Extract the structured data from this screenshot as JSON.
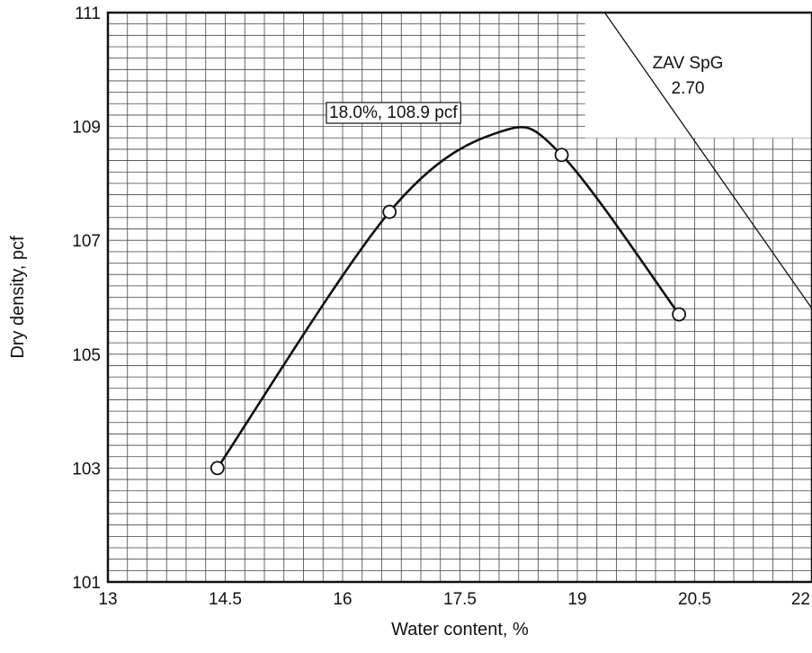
{
  "chart_data": {
    "type": "line",
    "title": "",
    "xlabel": "Water content, %",
    "ylabel": "Dry density, pcf",
    "xlim": [
      13,
      22
    ],
    "ylim": [
      101,
      111
    ],
    "xticks": [
      "13",
      "14.5",
      "16",
      "17.5",
      "19",
      "20.5",
      "22"
    ],
    "yticks": [
      "101",
      "103",
      "105",
      "107",
      "109",
      "111"
    ],
    "grid": true,
    "series": [
      {
        "x": [
          14.4,
          16.6,
          18.8,
          20.3
        ],
        "y": [
          103.0,
          107.5,
          108.5,
          105.7
        ]
      }
    ],
    "peak": {
      "x": 18.0,
      "y": 108.9
    },
    "annotations": [
      {
        "text": "18.0%, 108.9 pcf"
      }
    ],
    "zav_curve": {
      "label_line1": "ZAV SpG",
      "label_line2": "2.70",
      "from": [
        19.35,
        111
      ],
      "to": [
        22,
        105.8
      ]
    }
  }
}
